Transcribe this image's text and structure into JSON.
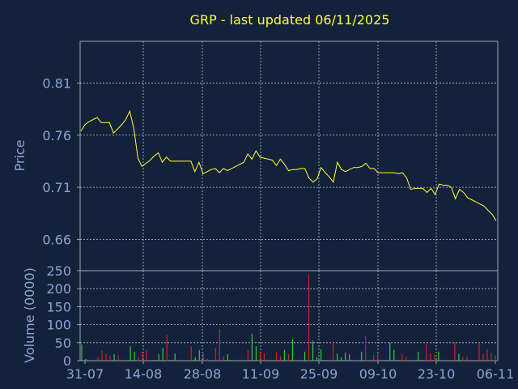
{
  "chart_data": [
    {
      "type": "line",
      "title": "GRP - last updated 06/11/2025",
      "ylabel": "Price",
      "ylim": [
        0.63,
        0.85
      ],
      "y_ticks": [
        "0.81",
        "0.76",
        "0.71",
        "0.66"
      ],
      "y_tick_values": [
        0.81,
        0.76,
        0.71,
        0.66
      ],
      "grid": true,
      "series": [
        {
          "color": "#ffff33",
          "values": [
            0.764,
            0.77,
            0.773,
            0.775,
            0.777,
            0.772,
            0.772,
            0.772,
            0.762,
            0.766,
            0.77,
            0.775,
            0.783,
            0.766,
            0.738,
            0.73,
            0.733,
            0.736,
            0.74,
            0.743,
            0.734,
            0.739,
            0.735,
            0.735,
            0.735,
            0.735,
            0.735,
            0.735,
            0.725,
            0.734,
            0.723,
            0.725,
            0.727,
            0.728,
            0.724,
            0.728,
            0.726,
            0.728,
            0.73,
            0.732,
            0.734,
            0.742,
            0.737,
            0.745,
            0.739,
            0.738,
            0.737,
            0.736,
            0.731,
            0.737,
            0.732,
            0.726,
            0.727,
            0.727,
            0.728,
            0.728,
            0.719,
            0.715,
            0.718,
            0.729,
            0.724,
            0.72,
            0.715,
            0.734,
            0.727,
            0.725,
            0.727,
            0.729,
            0.729,
            0.73,
            0.733,
            0.728,
            0.728,
            0.724,
            0.724,
            0.724,
            0.724,
            0.724,
            0.723,
            0.724,
            0.719,
            0.708,
            0.709,
            0.709,
            0.709,
            0.705,
            0.709,
            0.703,
            0.713,
            0.712,
            0.712,
            0.71,
            0.699,
            0.708,
            0.705,
            0.7,
            0.698,
            0.696,
            0.694,
            0.692,
            0.688,
            0.684,
            0.678
          ]
        }
      ]
    },
    {
      "type": "bar",
      "ylabel": "Volume (0000)",
      "ylim": [
        0,
        250
      ],
      "y_ticks": [
        "250",
        "200",
        "150",
        "100",
        "50",
        "0"
      ],
      "y_tick_values": [
        250,
        200,
        150,
        100,
        50,
        0
      ],
      "grid": true,
      "x_ticks": [
        "31-07",
        "14-08",
        "28-08",
        "11-09",
        "25-09",
        "09-10",
        "23-10",
        "06-11"
      ],
      "up_color": "#33cc33",
      "down_color": "#cc2222",
      "bars": [
        {
          "v": 45,
          "up": true
        },
        {
          "v": 5,
          "up": true
        },
        {
          "v": 0,
          "up": true
        },
        {
          "v": 0,
          "up": true
        },
        {
          "v": 10,
          "up": false
        },
        {
          "v": 28,
          "up": false
        },
        {
          "v": 20,
          "up": false
        },
        {
          "v": 14,
          "up": false
        },
        {
          "v": 18,
          "up": true
        },
        {
          "v": 15,
          "up": false
        },
        {
          "v": 0,
          "up": true
        },
        {
          "v": 0,
          "up": true
        },
        {
          "v": 40,
          "up": true
        },
        {
          "v": 25,
          "up": true
        },
        {
          "v": 10,
          "up": false
        },
        {
          "v": 22,
          "up": false
        },
        {
          "v": 30,
          "up": false
        },
        {
          "v": 0,
          "up": true
        },
        {
          "v": 0,
          "up": true
        },
        {
          "v": 18,
          "up": true
        },
        {
          "v": 35,
          "up": true
        },
        {
          "v": 72,
          "up": false
        },
        {
          "v": 0,
          "up": true
        },
        {
          "v": 20,
          "up": true
        },
        {
          "v": 0,
          "up": true
        },
        {
          "v": 0,
          "up": true
        },
        {
          "v": 0,
          "up": true
        },
        {
          "v": 40,
          "up": false
        },
        {
          "v": 10,
          "up": true
        },
        {
          "v": 30,
          "up": true
        },
        {
          "v": 22,
          "up": false
        },
        {
          "v": 5,
          "up": false
        },
        {
          "v": 0,
          "up": true
        },
        {
          "v": 35,
          "up": false
        },
        {
          "v": 88,
          "up": false
        },
        {
          "v": 12,
          "up": false
        },
        {
          "v": 18,
          "up": true
        },
        {
          "v": 0,
          "up": true
        },
        {
          "v": 0,
          "up": true
        },
        {
          "v": 0,
          "up": true
        },
        {
          "v": 0,
          "up": true
        },
        {
          "v": 30,
          "up": false
        },
        {
          "v": 75,
          "up": true
        },
        {
          "v": 40,
          "up": true
        },
        {
          "v": 25,
          "up": false
        },
        {
          "v": 20,
          "up": false
        },
        {
          "v": 0,
          "up": true
        },
        {
          "v": 0,
          "up": true
        },
        {
          "v": 25,
          "up": false
        },
        {
          "v": 12,
          "up": false
        },
        {
          "v": 30,
          "up": true
        },
        {
          "v": 18,
          "up": false
        },
        {
          "v": 60,
          "up": true
        },
        {
          "v": 0,
          "up": true
        },
        {
          "v": 0,
          "up": true
        },
        {
          "v": 25,
          "up": true
        },
        {
          "v": 238,
          "up": false
        },
        {
          "v": 55,
          "up": true
        },
        {
          "v": 10,
          "up": true
        },
        {
          "v": 32,
          "up": true
        },
        {
          "v": 0,
          "up": true
        },
        {
          "v": 0,
          "up": true
        },
        {
          "v": 50,
          "up": false
        },
        {
          "v": 20,
          "up": true
        },
        {
          "v": 10,
          "up": true
        },
        {
          "v": 22,
          "up": true
        },
        {
          "v": 18,
          "up": true
        },
        {
          "v": 0,
          "up": true
        },
        {
          "v": 0,
          "up": true
        },
        {
          "v": 25,
          "up": true
        },
        {
          "v": 68,
          "up": false
        },
        {
          "v": 0,
          "up": true
        },
        {
          "v": 15,
          "up": false
        },
        {
          "v": 20,
          "up": false
        },
        {
          "v": 0,
          "up": true
        },
        {
          "v": 0,
          "up": true
        },
        {
          "v": 50,
          "up": true
        },
        {
          "v": 30,
          "up": true
        },
        {
          "v": 0,
          "up": true
        },
        {
          "v": 18,
          "up": false
        },
        {
          "v": 12,
          "up": false
        },
        {
          "v": 0,
          "up": true
        },
        {
          "v": 0,
          "up": true
        },
        {
          "v": 25,
          "up": true
        },
        {
          "v": 0,
          "up": true
        },
        {
          "v": 48,
          "up": false
        },
        {
          "v": 20,
          "up": false
        },
        {
          "v": 15,
          "up": false
        },
        {
          "v": 25,
          "up": true
        },
        {
          "v": 0,
          "up": true
        },
        {
          "v": 0,
          "up": true
        },
        {
          "v": 0,
          "up": true
        },
        {
          "v": 50,
          "up": false
        },
        {
          "v": 18,
          "up": true
        },
        {
          "v": 10,
          "up": false
        },
        {
          "v": 12,
          "up": false
        },
        {
          "v": 0,
          "up": true
        },
        {
          "v": 0,
          "up": true
        },
        {
          "v": 50,
          "up": false
        },
        {
          "v": 20,
          "up": false
        },
        {
          "v": 32,
          "up": false
        },
        {
          "v": 22,
          "up": false
        },
        {
          "v": 15,
          "up": false
        }
      ]
    }
  ],
  "colors": {
    "background": "#14213a",
    "title": "#ffff33",
    "axis_text": "#8aa6d6",
    "grid": "#b9c3d6",
    "frame": "#9aa6ba"
  }
}
